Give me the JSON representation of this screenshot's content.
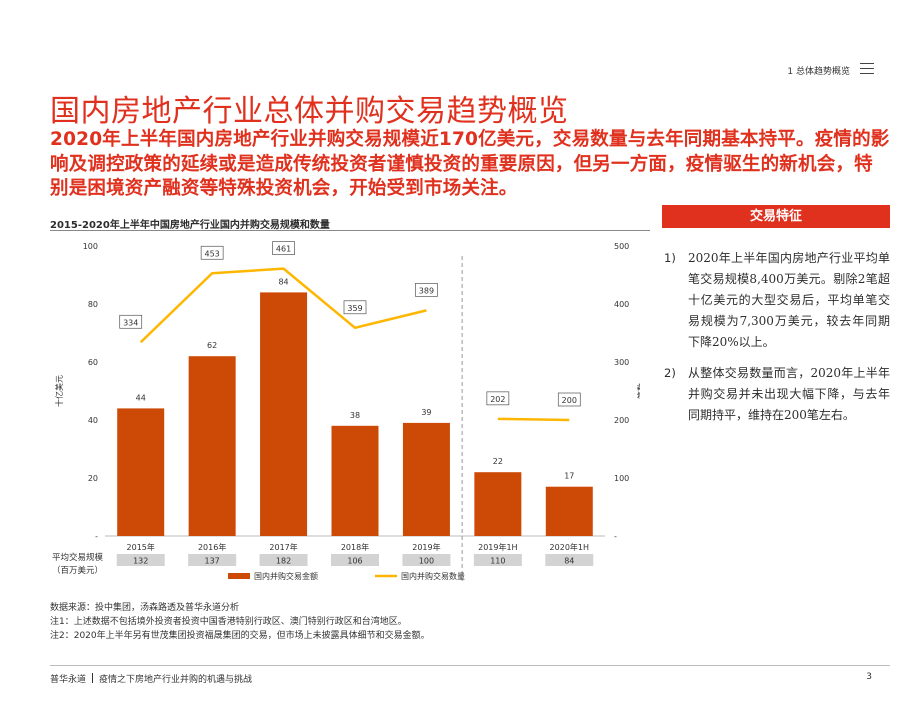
{
  "header": {
    "section_label": "1 总体趋势概览",
    "menu_icon": "hamburger-icon"
  },
  "title": "国内房地产行业总体并购交易趋势概览",
  "subtitle": "2020年上半年国内房地产行业并购交易规模近170亿美元，交易数量与去年同期基本持平。疫情的影响及调控政策的延续或是造成传统投资者谨慎投资的重要原因，但另一方面，疫情驱生的新机会，特别是困境资产融资等特殊投资机会，开始受到市场关注。",
  "chart_heading": "2015-2020年上半年中国房地产行业国内并购交易规模和数量",
  "chart_data": {
    "type": "bar",
    "categories": [
      "2015年",
      "2016年",
      "2017年",
      "2018年",
      "2019年",
      "2019年1H",
      "2020年1H"
    ],
    "series": [
      {
        "name": "国内并购交易金额",
        "type": "bar",
        "axis": "left",
        "values": [
          44,
          62,
          84,
          38,
          39,
          22,
          17
        ],
        "color": "#cc4a06"
      },
      {
        "name": "国内并购交易数量",
        "type": "line",
        "axis": "right",
        "values": [
          334,
          453,
          461,
          359,
          389,
          202,
          200
        ],
        "color": "#ffb600"
      }
    ],
    "line_segments": [
      [
        0,
        4
      ],
      [
        5,
        6
      ]
    ],
    "ylabel": "十亿美元",
    "y2label": "笔数",
    "ylim": [
      0,
      100
    ],
    "y2lim": [
      0,
      500
    ],
    "yticks": [
      "-",
      "20",
      "40",
      "60",
      "80",
      "100"
    ],
    "y2ticks": [
      "-",
      "100",
      "200",
      "300",
      "400",
      "500"
    ],
    "separator_after_category": 4,
    "legend_position": "bottom",
    "avg_row": {
      "label_line1": "平均交易规模",
      "label_line2": "（百万美元）",
      "values": [
        "132",
        "137",
        "182",
        "106",
        "100",
        "110",
        "84"
      ]
    }
  },
  "panel": {
    "header": "交易特征",
    "notes": [
      {
        "num": "1)",
        "text": "2020年上半年国内房地产行业平均单笔交易规模8,400万美元。剔除2笔超十亿美元的大型交易后，平均单笔交易规模为7,300万美元，较去年同期下降20%以上。"
      },
      {
        "num": "2)",
        "text": "从整体交易数量而言，2020年上半年并购交易并未出现大幅下降，与去年同期持平，维持在200笔左右。"
      }
    ]
  },
  "footnotes": [
    "数据来源：投中集团，汤森路透及普华永道分析",
    "注1：上述数据不包括境外投资者投资中国香港特别行政区、澳门特别行政区和台湾地区。",
    "注2：2020年上半年另有世茂集团投资福晟集团的交易，但市场上未披露具体细节和交易金额。"
  ],
  "footer": {
    "brand": "普华永道",
    "doc_title": "疫情之下房地产行业并购的机遇与挑战",
    "page_number": "3"
  }
}
